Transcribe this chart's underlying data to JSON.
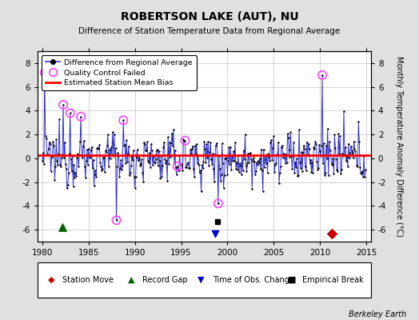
{
  "title": "ROBERTSON LAKE (AUT), NU",
  "subtitle": "Difference of Station Temperature Data from Regional Average",
  "ylabel": "Monthly Temperature Anomaly Difference (°C)",
  "credit": "Berkeley Earth",
  "x_start": 1979.5,
  "x_end": 2015.5,
  "y_min": -7,
  "y_max": 9,
  "bias_value": 0.25,
  "background_color": "#e0e0e0",
  "plot_bg_color": "#ffffff",
  "grid_color": "#c0c0c0",
  "line_color": "#3333cc",
  "dot_color": "#000000",
  "qc_color": "#ff44ff",
  "bias_color": "#ff0000",
  "station_move_color": "#cc0000",
  "record_gap_color": "#006600",
  "tobs_color": "#0000cc",
  "emp_break_color": "#000000",
  "xticks": [
    1980,
    1985,
    1990,
    1995,
    2000,
    2005,
    2010,
    2015
  ],
  "yticks": [
    -6,
    -4,
    -2,
    0,
    2,
    4,
    6,
    8
  ],
  "station_move_x": 2011.3,
  "record_gap_x": 1982.2,
  "tobs_change_x": 1998.7,
  "emp_break_x": 1998.9,
  "seed": 12345
}
